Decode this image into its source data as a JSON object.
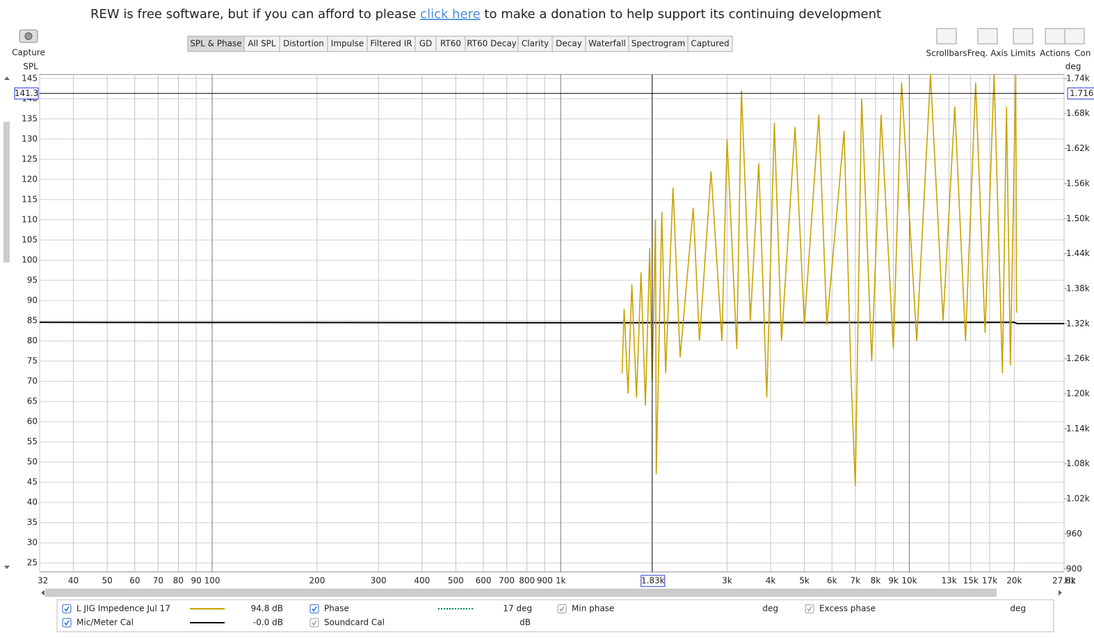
{
  "banner": {
    "before": "REW is free software, but if you can afford to please",
    "link": "click here",
    "after": "to make a donation to help support its continuing development"
  },
  "toolbar": {
    "capture": "Capture",
    "tabs": [
      "SPL & Phase",
      "All SPL",
      "Distortion",
      "Impulse",
      "Filtered IR",
      "GD",
      "RT60",
      "RT60 Decay",
      "Clarity",
      "Decay",
      "Waterfall",
      "Spectrogram",
      "Captured"
    ],
    "active_tab": 0,
    "tools": [
      "Scrollbars",
      "Freq. Axis",
      "Limits",
      "Actions",
      "Con"
    ]
  },
  "chart_data": {
    "type": "line",
    "y_label": "SPL",
    "y2_label": "deg",
    "x_unit": "Hz",
    "log_x": true,
    "grid": true,
    "xlim": [
      32,
      27800
    ],
    "xticks": [
      32,
      40,
      50,
      60,
      70,
      80,
      90,
      100,
      200,
      300,
      400,
      500,
      600,
      700,
      800,
      900,
      {
        "value": 1000,
        "label": "1k"
      },
      {
        "value": 3000,
        "label": "3k"
      },
      {
        "value": 4000,
        "label": "4k"
      },
      {
        "value": 5000,
        "label": "5k"
      },
      {
        "value": 6000,
        "label": "6k"
      },
      {
        "value": 7000,
        "label": "7k"
      },
      {
        "value": 8000,
        "label": "8k"
      },
      {
        "value": 9000,
        "label": "9k"
      },
      {
        "value": 10000,
        "label": "10k"
      },
      {
        "value": 13000,
        "label": "13k"
      },
      {
        "value": 15000,
        "label": "15k"
      },
      {
        "value": 17000,
        "label": "17k"
      },
      {
        "value": 20000,
        "label": "20k"
      },
      {
        "value": 27800,
        "label": "27.8k"
      }
    ],
    "ylim": [
      22.8,
      146
    ],
    "yticks": [
      25,
      30,
      35,
      40,
      45,
      50,
      55,
      60,
      65,
      70,
      75,
      80,
      85,
      90,
      95,
      100,
      105,
      110,
      115,
      120,
      125,
      130,
      135,
      140,
      145
    ],
    "y2lim": [
      895,
      1747
    ],
    "y2ticks": [
      900,
      960,
      {
        "value": 1020,
        "label": "1.02k"
      },
      {
        "value": 1080,
        "label": "1.08k"
      },
      {
        "value": 1140,
        "label": "1.14k"
      },
      {
        "value": 1200,
        "label": "1.20k"
      },
      {
        "value": 1260,
        "label": "1.26k"
      },
      {
        "value": 1320,
        "label": "1.32k"
      },
      {
        "value": 1380,
        "label": "1.38k"
      },
      {
        "value": 1440,
        "label": "1.44k"
      },
      {
        "value": 1500,
        "label": "1.50k"
      },
      {
        "value": 1560,
        "label": "1.56k"
      },
      {
        "value": 1620,
        "label": "1.62k"
      },
      {
        "value": 1680,
        "label": "1.68k"
      },
      {
        "value": 1740,
        "label": "1.74k"
      }
    ],
    "series": [
      {
        "name": "L JIG Impedence Jul 17",
        "color": "#c9a200",
        "x": [
          1500,
          1520,
          1560,
          1600,
          1650,
          1700,
          1750,
          1800,
          1830,
          1870,
          1880,
          1950,
          2000,
          2100,
          2200,
          2400,
          2500,
          2700,
          2900,
          3000,
          3200,
          3300,
          3500,
          3700,
          3900,
          4100,
          4300,
          4700,
          5000,
          5500,
          5800,
          6500,
          6800,
          7000,
          7300,
          7800,
          8300,
          9000,
          9500,
          10500,
          11500,
          12500,
          13500,
          14500,
          15500,
          16500,
          17500,
          18500,
          19000,
          19500,
          20200,
          20300
        ],
        "values": [
          72,
          88,
          67,
          94,
          66,
          97,
          64,
          103,
          70,
          110,
          47,
          112,
          72,
          118,
          76,
          113,
          80,
          122,
          80,
          130,
          78,
          142,
          85,
          124,
          66,
          134,
          80,
          133,
          84,
          136,
          84,
          132,
          72,
          44,
          140,
          75,
          136,
          78,
          144,
          80,
          146,
          85,
          138,
          80,
          144,
          82,
          146,
          72,
          138,
          74,
          146,
          87
        ]
      },
      {
        "name": "Mic/Meter Cal",
        "color": "#000000",
        "x": [
          32,
          1000,
          20000,
          20400,
          27800
        ],
        "values": [
          84.6,
          84.5,
          84.6,
          84.3,
          84.3
        ]
      }
    ],
    "cursor": {
      "x": {
        "value": 1830,
        "label": "1.83k"
      },
      "y": 141.3,
      "y2": {
        "value": 1716,
        "label": "1.716k"
      }
    }
  },
  "legend": {
    "readouts": [
      "94.8 dB",
      "-0.0 dB"
    ],
    "others": [
      {
        "name": "Phase",
        "value": "17 deg"
      },
      {
        "name": "Min phase",
        "value": "deg"
      },
      {
        "name": "Excess phase",
        "value": "deg"
      },
      {
        "name": "Soundcard Cal",
        "value": "dB"
      }
    ]
  }
}
